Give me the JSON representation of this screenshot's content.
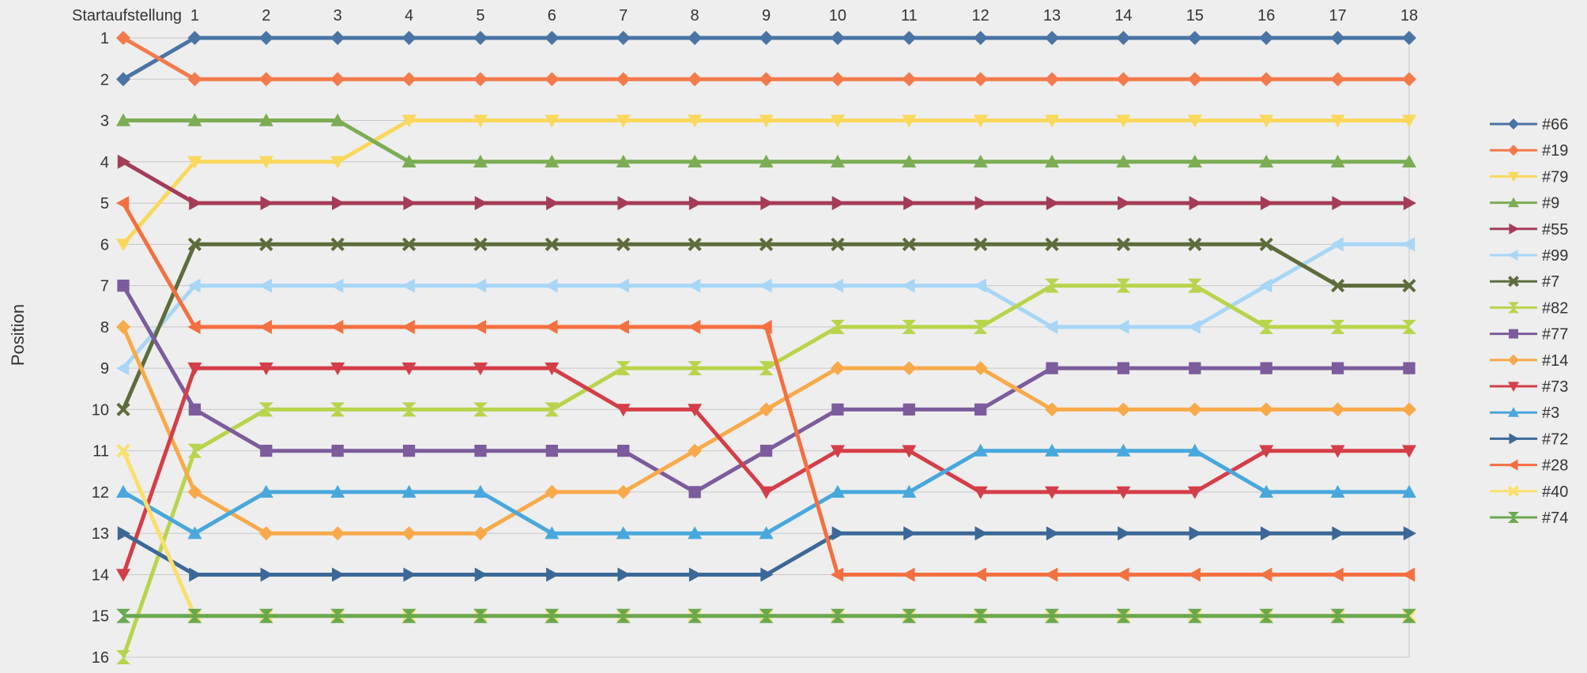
{
  "chart_data": {
    "type": "line",
    "xlabel": "",
    "ylabel": "Position",
    "x_labels": [
      "Startaufstellung",
      "1",
      "2",
      "3",
      "4",
      "5",
      "6",
      "7",
      "8",
      "9",
      "10",
      "11",
      "12",
      "13",
      "14",
      "15",
      "16",
      "17",
      "18"
    ],
    "x": [
      0,
      1,
      2,
      3,
      4,
      5,
      6,
      7,
      8,
      9,
      10,
      11,
      12,
      13,
      14,
      15,
      16,
      17,
      18
    ],
    "y_ticks": [
      1,
      2,
      3,
      4,
      5,
      6,
      7,
      8,
      9,
      10,
      11,
      12,
      13,
      14,
      15,
      16
    ],
    "ylim": [
      1,
      16
    ],
    "y_inverted": true,
    "x_axis_position": "top",
    "grid": true,
    "legend_position": "right",
    "series": [
      {
        "name": "#66",
        "color": "#4a74a4",
        "marker": "diamond",
        "values": [
          2,
          1,
          1,
          1,
          1,
          1,
          1,
          1,
          1,
          1,
          1,
          1,
          1,
          1,
          1,
          1,
          1,
          1,
          1
        ]
      },
      {
        "name": "#19",
        "color": "#f47a4c",
        "marker": "diamond",
        "values": [
          1,
          2,
          2,
          2,
          2,
          2,
          2,
          2,
          2,
          2,
          2,
          2,
          2,
          2,
          2,
          2,
          2,
          2,
          2
        ]
      },
      {
        "name": "#79",
        "color": "#f9d85c",
        "marker": "triangle-down",
        "values": [
          6,
          4,
          4,
          4,
          3,
          3,
          3,
          3,
          3,
          3,
          3,
          3,
          3,
          3,
          3,
          3,
          3,
          3,
          3
        ]
      },
      {
        "name": "#9",
        "color": "#7cad54",
        "marker": "triangle-up",
        "values": [
          3,
          3,
          3,
          3,
          4,
          4,
          4,
          4,
          4,
          4,
          4,
          4,
          4,
          4,
          4,
          4,
          4,
          4,
          4
        ]
      },
      {
        "name": "#55",
        "color": "#a43c58",
        "marker": "triangle-right",
        "values": [
          4,
          5,
          5,
          5,
          5,
          5,
          5,
          5,
          5,
          5,
          5,
          5,
          5,
          5,
          5,
          5,
          5,
          5,
          5
        ]
      },
      {
        "name": "#99",
        "color": "#a8d6f6",
        "marker": "triangle-left",
        "values": [
          9,
          7,
          7,
          7,
          7,
          7,
          7,
          7,
          7,
          7,
          7,
          7,
          7,
          8,
          8,
          8,
          7,
          6,
          6
        ]
      },
      {
        "name": "#7",
        "color": "#5e6c3c",
        "marker": "x",
        "values": [
          10,
          6,
          6,
          6,
          6,
          6,
          6,
          6,
          6,
          6,
          6,
          6,
          6,
          6,
          6,
          6,
          6,
          7,
          7
        ]
      },
      {
        "name": "#82",
        "color": "#b8d44c",
        "marker": "hourglass",
        "values": [
          16,
          11,
          10,
          10,
          10,
          10,
          10,
          9,
          9,
          9,
          8,
          8,
          8,
          7,
          7,
          7,
          8,
          8,
          8
        ]
      },
      {
        "name": "#77",
        "color": "#7c5c9c",
        "marker": "square",
        "values": [
          7,
          10,
          11,
          11,
          11,
          11,
          11,
          11,
          12,
          11,
          10,
          10,
          10,
          9,
          9,
          9,
          9,
          9,
          9
        ]
      },
      {
        "name": "#14",
        "color": "#f8aa4a",
        "marker": "diamond",
        "values": [
          8,
          12,
          13,
          13,
          13,
          13,
          12,
          12,
          11,
          10,
          9,
          9,
          9,
          10,
          10,
          10,
          10,
          10,
          10
        ]
      },
      {
        "name": "#73",
        "color": "#d43e48",
        "marker": "triangle-down",
        "values": [
          14,
          9,
          9,
          9,
          9,
          9,
          9,
          10,
          10,
          12,
          11,
          11,
          12,
          12,
          12,
          12,
          11,
          11,
          11
        ]
      },
      {
        "name": "#3",
        "color": "#48a8dc",
        "marker": "triangle-up",
        "values": [
          12,
          13,
          12,
          12,
          12,
          12,
          13,
          13,
          13,
          13,
          12,
          12,
          11,
          11,
          11,
          11,
          12,
          12,
          12
        ]
      },
      {
        "name": "#72",
        "color": "#3c6898",
        "marker": "triangle-right",
        "values": [
          13,
          14,
          14,
          14,
          14,
          14,
          14,
          14,
          14,
          14,
          13,
          13,
          13,
          13,
          13,
          13,
          13,
          13,
          13
        ]
      },
      {
        "name": "#28",
        "color": "#f47040",
        "marker": "triangle-left",
        "values": [
          5,
          8,
          8,
          8,
          8,
          8,
          8,
          8,
          8,
          8,
          14,
          14,
          14,
          14,
          14,
          14,
          14,
          14,
          14
        ]
      },
      {
        "name": "#40",
        "color": "#fae06a",
        "marker": "x",
        "values": [
          11,
          15,
          15,
          15,
          15,
          15,
          15,
          15,
          15,
          15,
          15,
          15,
          15,
          15,
          15,
          15,
          15,
          15,
          15
        ]
      },
      {
        "name": "#74",
        "color": "#6aa850",
        "marker": "hourglass",
        "values": [
          15,
          15,
          15,
          15,
          15,
          15,
          15,
          15,
          15,
          15,
          15,
          15,
          15,
          15,
          15,
          15,
          15,
          15,
          15
        ]
      }
    ]
  }
}
